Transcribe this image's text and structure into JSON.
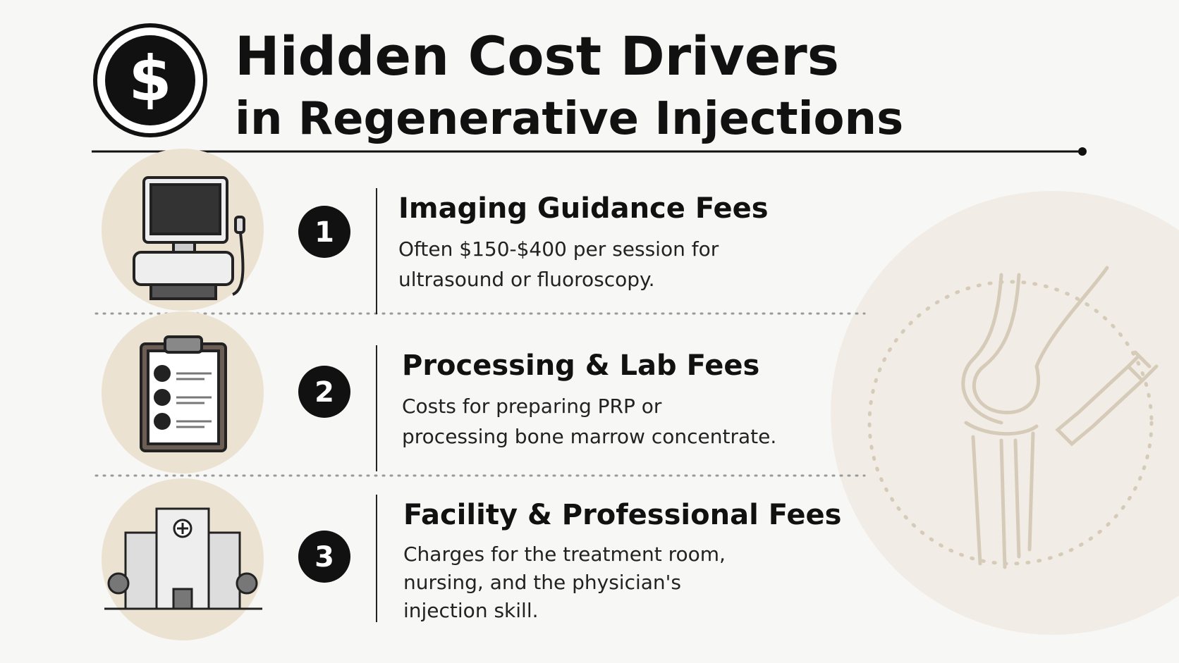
{
  "header": {
    "icon": "$",
    "title_lines": [
      "Hidden Cost Drivers",
      "in Regenerative Injections"
    ]
  },
  "items": [
    {
      "number": "1",
      "title": "Imaging Guidance Fees",
      "description_lines": [
        "Often $150-$400 per session for",
        "ultrasound or fluoroscopy."
      ]
    },
    {
      "number": "2",
      "title": "Processing & Lab Fees",
      "description_lines": [
        "Costs for preparing PRP or",
        "processing bone marrow concentrate."
      ]
    },
    {
      "number": "3",
      "title": "Facility & Professional Fees",
      "description_lines": [
        "Charges for the treatment room,",
        "nursing, and the physician's",
        "injection skill."
      ]
    }
  ]
}
